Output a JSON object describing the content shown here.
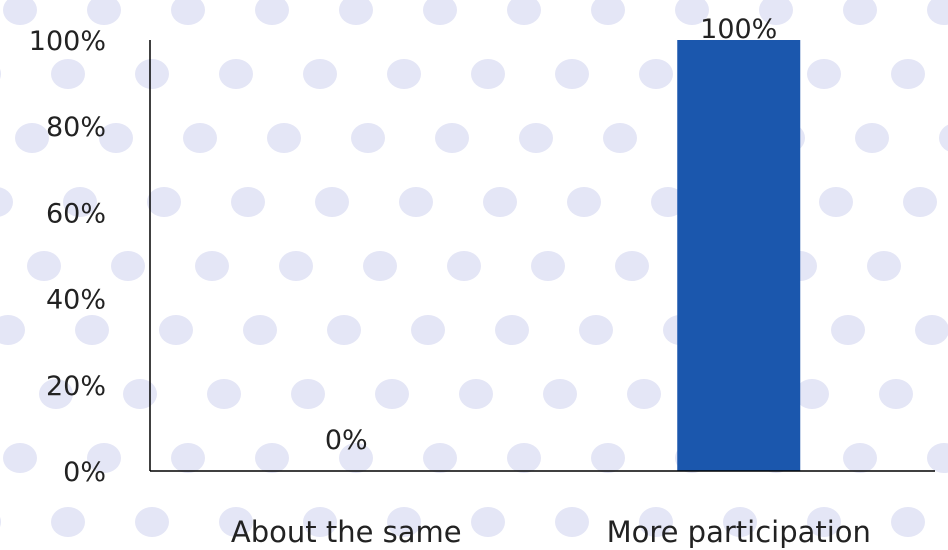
{
  "colors": {
    "background": "#ffffff",
    "bar": "#1b57ad",
    "axis": "#000000",
    "text": "#222222",
    "dot": "#e4e6f6"
  },
  "chart_data": {
    "type": "bar",
    "title": "",
    "xlabel": "",
    "ylabel": "",
    "categories": [
      "About the same",
      "More participation"
    ],
    "values": [
      0,
      100
    ],
    "data_labels": [
      "0%",
      "100%"
    ],
    "ylim": [
      0,
      100
    ],
    "yticks": [
      0,
      20,
      40,
      60,
      80,
      100
    ],
    "ytick_labels": [
      "0%",
      "20%",
      "40%",
      "60%",
      "80%",
      "100%"
    ],
    "grid": false,
    "legend": "none",
    "background_pattern": "polka-dots"
  }
}
